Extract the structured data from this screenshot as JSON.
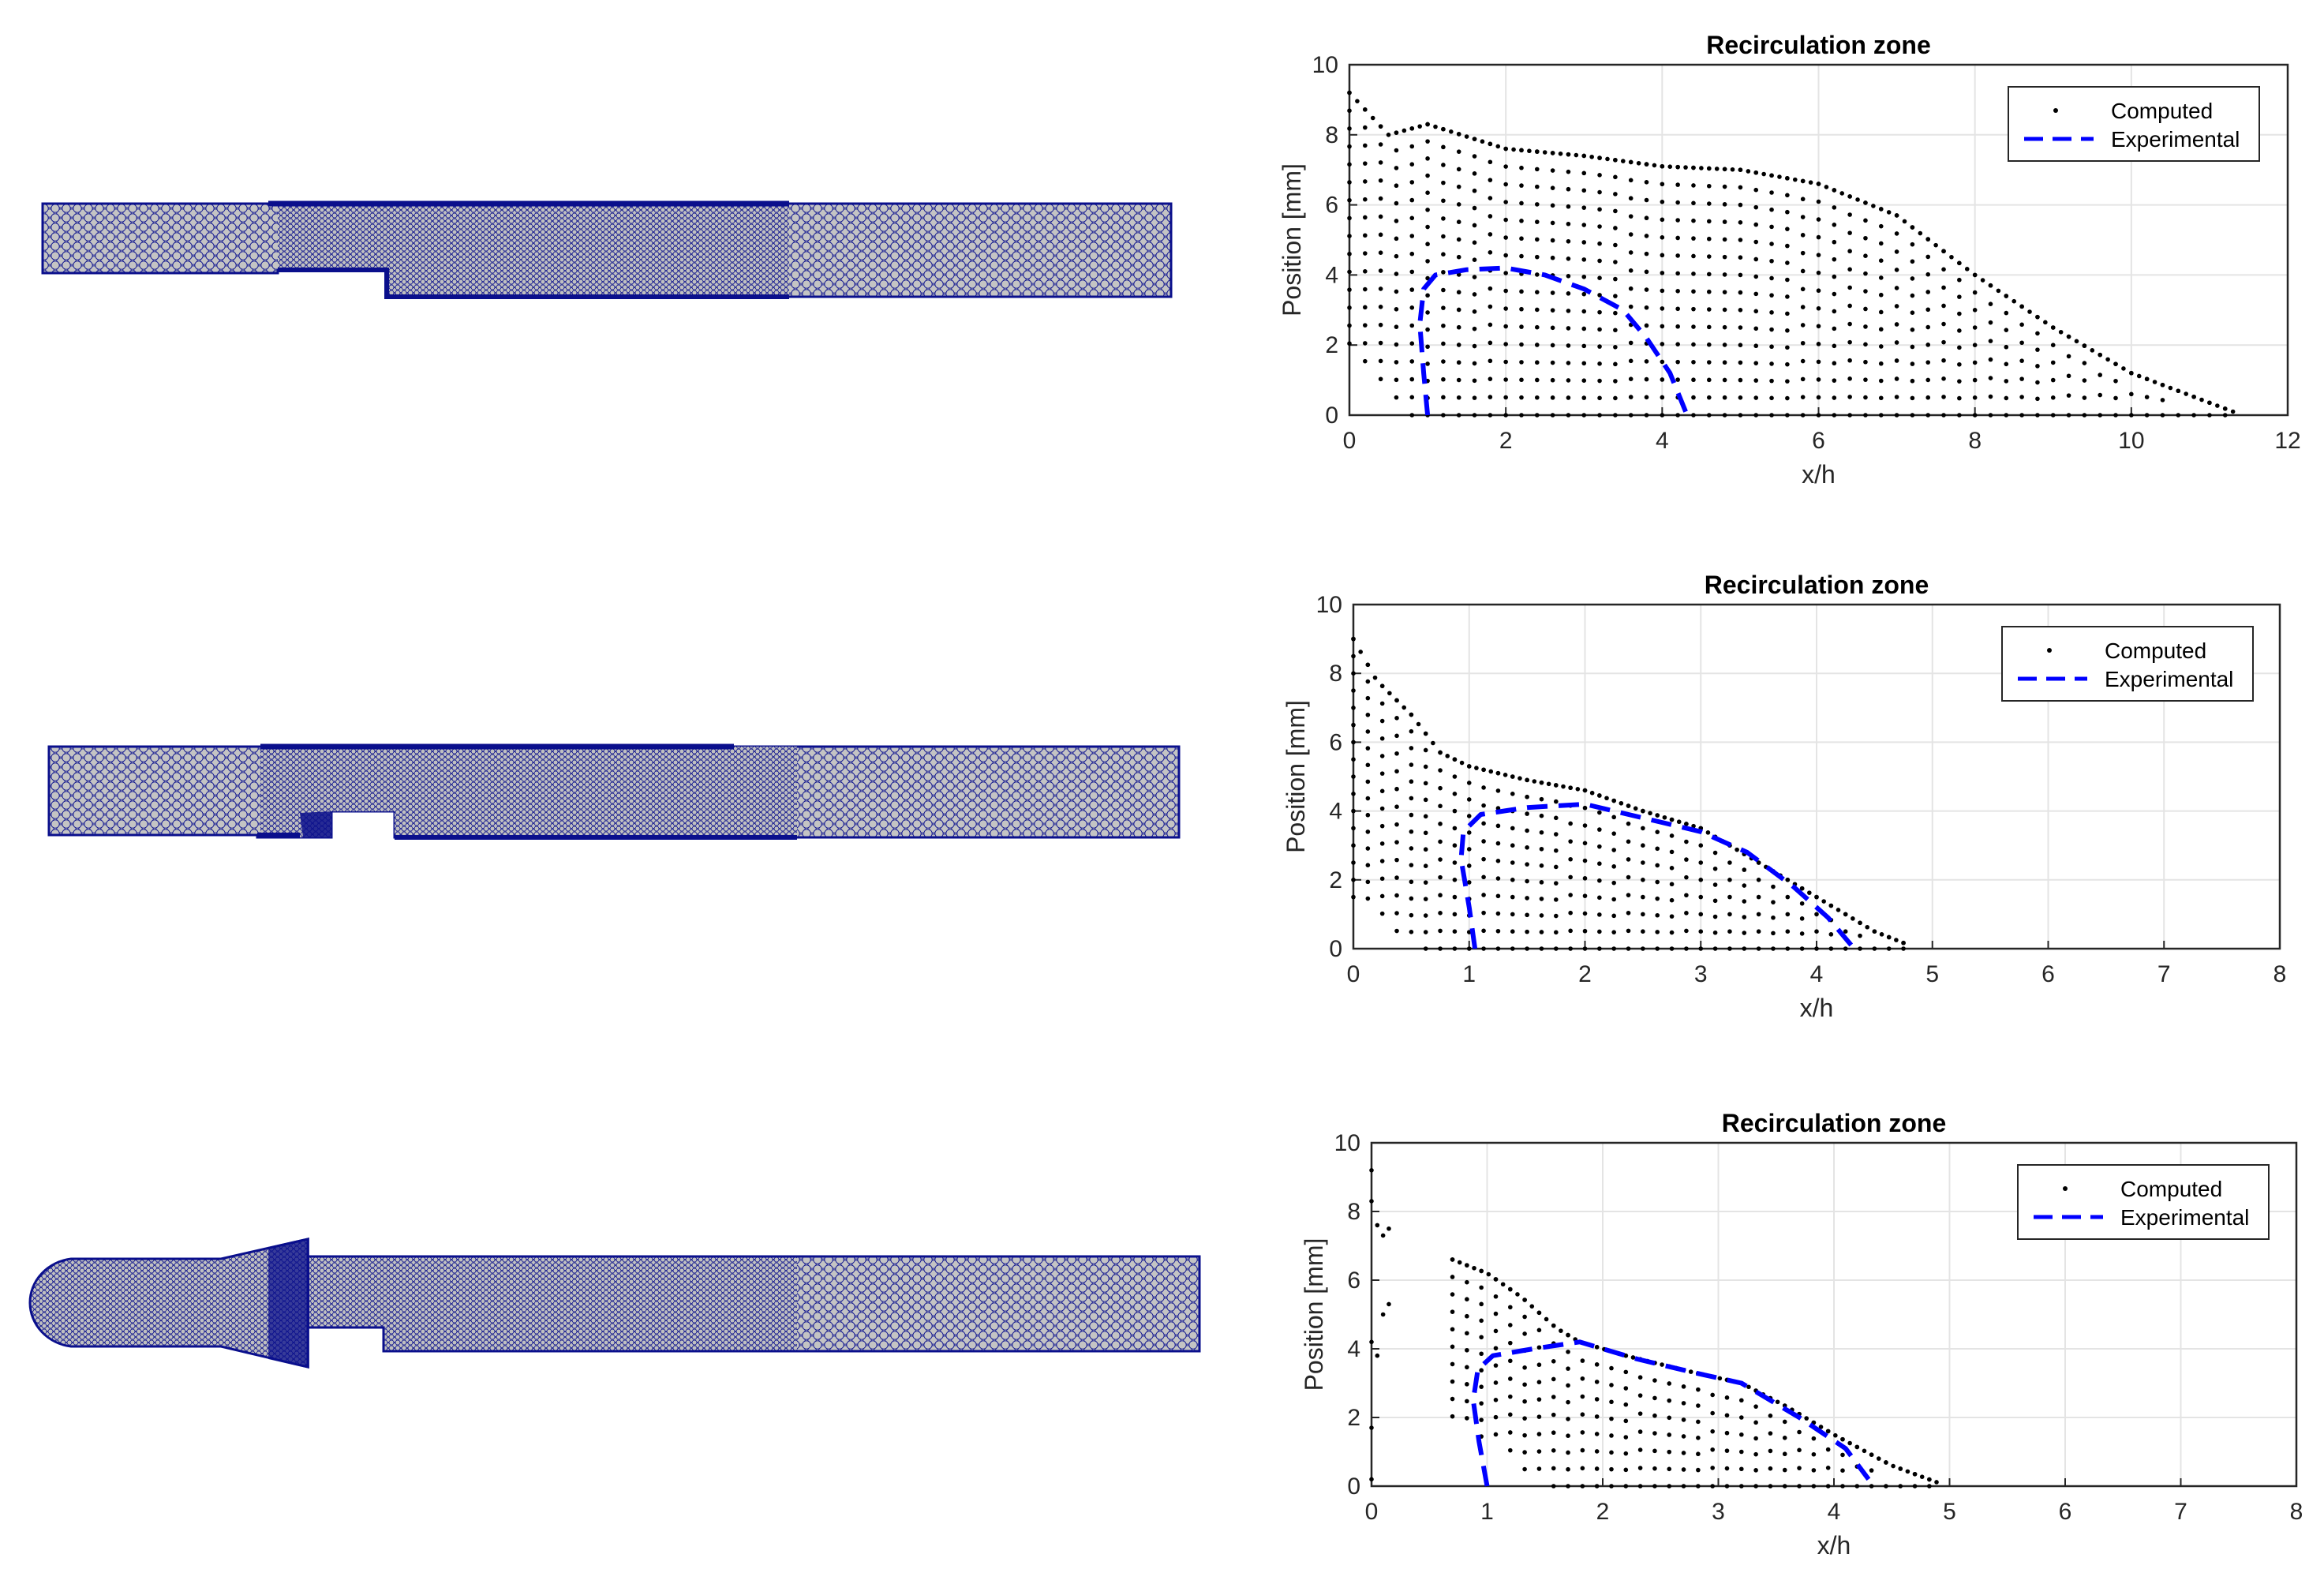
{
  "figure": {
    "colors": {
      "mesh_fill": "#cfcfcf",
      "mesh_edge": "#0a0f8c",
      "computed": "#000000",
      "experimental": "#0000ff",
      "grid": "#e4e4e4",
      "axes": "#262626"
    },
    "meshes": [
      {
        "name": "geometry-1-straight-inlet",
        "shape": "backward-facing-step"
      },
      {
        "name": "geometry-2-step-with-cavity",
        "shape": "backward-facing-step-with-cavity"
      },
      {
        "name": "geometry-3-plenum-nozzle",
        "shape": "plenum-nozzle-step"
      }
    ]
  },
  "chart_data": [
    {
      "type": "scatter",
      "title": "Recirculation zone",
      "xlabel": "x/h",
      "ylabel": "Position [mm]",
      "xlim": [
        0,
        12
      ],
      "ylim": [
        0,
        10
      ],
      "xticks": [
        "0",
        "2",
        "4",
        "6",
        "8",
        "10",
        "12"
      ],
      "yticks": [
        "0",
        "2",
        "4",
        "6",
        "8",
        "10"
      ],
      "grid": true,
      "legend": {
        "position": "top-right",
        "entries": [
          "Computed",
          "Experimental"
        ]
      },
      "series": [
        {
          "name": "Computed",
          "style": "dots",
          "profile": [
            [
              0.0,
              9.2
            ],
            [
              0.5,
              8.0
            ],
            [
              1.0,
              8.3
            ],
            [
              2.0,
              7.6
            ],
            [
              3.0,
              7.4
            ],
            [
              4.0,
              7.1
            ],
            [
              5.0,
              7.0
            ],
            [
              6.0,
              6.6
            ],
            [
              7.0,
              5.7
            ],
            [
              8.0,
              4.0
            ],
            [
              9.0,
              2.5
            ],
            [
              10.0,
              1.2
            ],
            [
              11.3,
              0.1
            ]
          ],
          "reattach_start": 0.8
        },
        {
          "name": "Experimental",
          "style": "dashed",
          "x": [
            1.0,
            0.95,
            0.9,
            0.95,
            1.1,
            1.5,
            2.0,
            2.5,
            3.0,
            3.5,
            3.8,
            4.1,
            4.3
          ],
          "y": [
            0.0,
            1.2,
            2.6,
            3.6,
            4.0,
            4.15,
            4.2,
            4.0,
            3.6,
            3.0,
            2.2,
            1.2,
            0.1
          ]
        }
      ]
    },
    {
      "type": "scatter",
      "title": "Recirculation zone",
      "xlabel": "x/h",
      "ylabel": "Position [mm]",
      "xlim": [
        0,
        8
      ],
      "ylim": [
        0,
        10
      ],
      "xticks": [
        "0",
        "1",
        "2",
        "3",
        "4",
        "5",
        "6",
        "7",
        "8"
      ],
      "yticks": [
        "0",
        "2",
        "4",
        "6",
        "8",
        "10"
      ],
      "grid": true,
      "legend": {
        "position": "top-right",
        "entries": [
          "Computed",
          "Experimental"
        ]
      },
      "series": [
        {
          "name": "Computed",
          "style": "dots",
          "profile": [
            [
              0.0,
              9.0
            ],
            [
              0.2,
              7.8
            ],
            [
              0.5,
              6.8
            ],
            [
              0.75,
              5.7
            ],
            [
              1.0,
              5.3
            ],
            [
              1.5,
              4.9
            ],
            [
              2.0,
              4.6
            ],
            [
              2.5,
              4.0
            ],
            [
              3.0,
              3.5
            ],
            [
              3.5,
              2.5
            ],
            [
              4.0,
              1.5
            ],
            [
              4.5,
              0.5
            ],
            [
              4.8,
              0.1
            ]
          ],
          "reattach_start": 0.55
        },
        {
          "name": "Experimental",
          "style": "dashed",
          "x": [
            1.05,
            1.0,
            0.93,
            0.95,
            1.1,
            1.5,
            2.0,
            2.5,
            3.0,
            3.4,
            3.8,
            4.1,
            4.3
          ],
          "y": [
            0.0,
            1.2,
            2.6,
            3.4,
            3.9,
            4.1,
            4.2,
            3.8,
            3.4,
            2.8,
            1.8,
            0.9,
            0.1
          ]
        }
      ]
    },
    {
      "type": "scatter",
      "title": "Recirculation zone",
      "xlabel": "x/h",
      "ylabel": "Position [mm]",
      "xlim": [
        0,
        8
      ],
      "ylim": [
        0,
        10
      ],
      "xticks": [
        "0",
        "1",
        "2",
        "3",
        "4",
        "5",
        "6",
        "7",
        "8"
      ],
      "yticks": [
        "0",
        "2",
        "4",
        "6",
        "8",
        "10"
      ],
      "grid": true,
      "legend": {
        "position": "top-right",
        "entries": [
          "Computed",
          "Experimental"
        ]
      },
      "series": [
        {
          "name": "Computed",
          "style": "dots",
          "profile": [
            [
              0.7,
              6.6
            ],
            [
              1.0,
              6.2
            ],
            [
              1.3,
              5.5
            ],
            [
              1.6,
              4.6
            ],
            [
              1.8,
              4.2
            ],
            [
              2.2,
              3.8
            ],
            [
              2.8,
              3.3
            ],
            [
              3.2,
              3.0
            ],
            [
              3.6,
              2.3
            ],
            [
              4.0,
              1.5
            ],
            [
              4.5,
              0.6
            ],
            [
              4.9,
              0.1
            ]
          ],
          "reattach_start": 1.5,
          "outliers": [
            [
              0.0,
              9.2
            ],
            [
              0.0,
              8.3
            ],
            [
              0.05,
              7.6
            ],
            [
              0.1,
              7.3
            ],
            [
              0.15,
              7.5
            ],
            [
              0.1,
              5.0
            ],
            [
              0.15,
              5.3
            ],
            [
              0.0,
              4.2
            ],
            [
              0.05,
              3.8
            ],
            [
              0.0,
              1.7
            ],
            [
              0.0,
              0.2
            ]
          ]
        },
        {
          "name": "Experimental",
          "style": "dashed",
          "x": [
            1.0,
            0.93,
            0.88,
            0.92,
            1.05,
            1.4,
            1.8,
            2.3,
            2.8,
            3.2,
            3.7,
            4.1,
            4.3
          ],
          "y": [
            0.0,
            1.3,
            2.5,
            3.4,
            3.8,
            4.0,
            4.2,
            3.7,
            3.3,
            3.0,
            2.0,
            1.1,
            0.2
          ]
        }
      ]
    }
  ]
}
